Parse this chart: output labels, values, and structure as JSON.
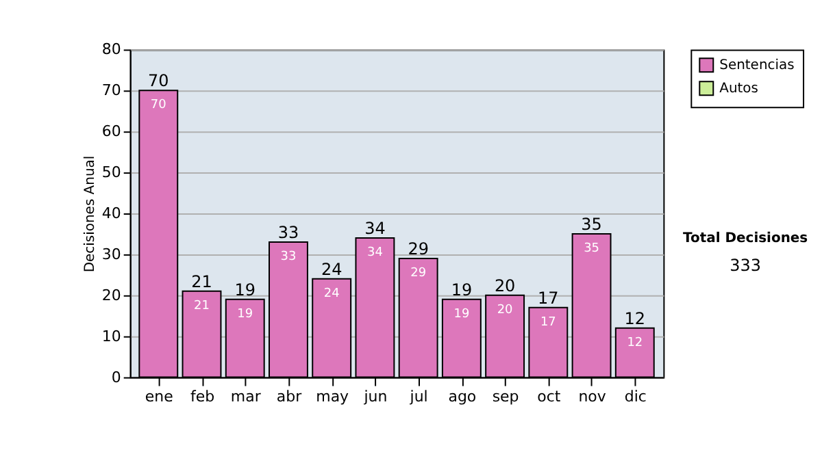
{
  "chart_data": {
    "type": "bar",
    "stacked": true,
    "ylabel": "Decisiones Anual",
    "categories": [
      "ene",
      "feb",
      "mar",
      "abr",
      "may",
      "jun",
      "jul",
      "ago",
      "sep",
      "oct",
      "nov",
      "dic"
    ],
    "series": [
      {
        "name": "Sentencias",
        "color": "#dd77bb",
        "values": [
          70,
          21,
          19,
          33,
          24,
          34,
          29,
          19,
          20,
          17,
          35,
          12
        ],
        "value_labels": [
          "70",
          "21",
          "19",
          "33",
          "24",
          "34",
          "29",
          "19",
          "20",
          "17",
          "35",
          "12"
        ]
      },
      {
        "name": "Autos",
        "color": "#ccee99",
        "values": [
          0,
          0,
          0,
          0,
          0,
          0,
          0,
          0,
          0,
          0,
          0,
          0
        ]
      }
    ],
    "totals": [
      "70",
      "21",
      "19",
      "33",
      "24",
      "34",
      "29",
      "19",
      "20",
      "17",
      "35",
      "12"
    ],
    "ylim": [
      0,
      80
    ],
    "yticks": [
      0,
      10,
      20,
      30,
      40,
      50,
      60,
      70,
      80
    ],
    "grid": "y",
    "legend": "right",
    "annotations": [
      "Total Decisiones",
      "333"
    ]
  }
}
